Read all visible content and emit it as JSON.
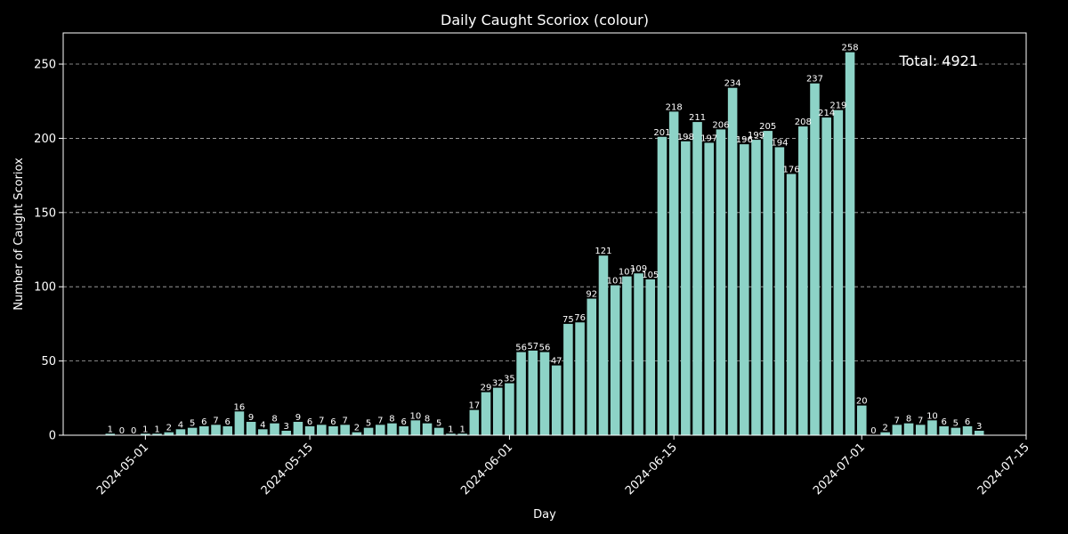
{
  "chart_data": {
    "type": "bar",
    "title": "Daily Caught Scoriox (colour)",
    "xlabel": "Day",
    "ylabel": "Number of Caught Scoriox",
    "annotation": "Total: 4921",
    "start_date": "2024-04-28",
    "dates": [
      "2024-04-28",
      "2024-04-29",
      "2024-04-30",
      "2024-05-01",
      "2024-05-02",
      "2024-05-03",
      "2024-05-04",
      "2024-05-05",
      "2024-05-06",
      "2024-05-07",
      "2024-05-08",
      "2024-05-09",
      "2024-05-10",
      "2024-05-11",
      "2024-05-12",
      "2024-05-13",
      "2024-05-14",
      "2024-05-15",
      "2024-05-16",
      "2024-05-17",
      "2024-05-18",
      "2024-05-19",
      "2024-05-20",
      "2024-05-21",
      "2024-05-22",
      "2024-05-23",
      "2024-05-24",
      "2024-05-25",
      "2024-05-26",
      "2024-05-27",
      "2024-05-28",
      "2024-05-29",
      "2024-05-30",
      "2024-05-31",
      "2024-06-01",
      "2024-06-02",
      "2024-06-03",
      "2024-06-04",
      "2024-06-05",
      "2024-06-06",
      "2024-06-07",
      "2024-06-08",
      "2024-06-09",
      "2024-06-10",
      "2024-06-11",
      "2024-06-12",
      "2024-06-13",
      "2024-06-14",
      "2024-06-15",
      "2024-06-16",
      "2024-06-17",
      "2024-06-18",
      "2024-06-19",
      "2024-06-20",
      "2024-06-21",
      "2024-06-22",
      "2024-06-23",
      "2024-06-24",
      "2024-06-25",
      "2024-06-26",
      "2024-06-27",
      "2024-06-28",
      "2024-06-29",
      "2024-06-30",
      "2024-07-01",
      "2024-07-02",
      "2024-07-03",
      "2024-07-04",
      "2024-07-05",
      "2024-07-06",
      "2024-07-07",
      "2024-07-08",
      "2024-07-09",
      "2024-07-10",
      "2024-07-11"
    ],
    "values": [
      1,
      0,
      0,
      1,
      1,
      2,
      4,
      5,
      6,
      7,
      6,
      16,
      9,
      4,
      8,
      3,
      9,
      6,
      7,
      6,
      7,
      2,
      5,
      7,
      8,
      6,
      10,
      8,
      5,
      1,
      1,
      17,
      29,
      32,
      35,
      56,
      57,
      56,
      47,
      75,
      76,
      92,
      121,
      101,
      107,
      109,
      105,
      201,
      218,
      198,
      211,
      197,
      206,
      234,
      196,
      199,
      205,
      194,
      176,
      208,
      237,
      214,
      219,
      258,
      20,
      0,
      2,
      7,
      8,
      7,
      10,
      6,
      5,
      6,
      3
    ],
    "x_ticks": [
      "2024-05-01",
      "2024-05-15",
      "2024-06-01",
      "2024-06-15",
      "2024-07-01",
      "2024-07-15"
    ],
    "y_ticks": [
      0,
      50,
      100,
      150,
      200,
      250
    ],
    "ylim": [
      0,
      271
    ],
    "xlim": [
      "2024-04-24",
      "2024-07-15"
    ],
    "grid": "y-dashed",
    "colors": {
      "background": "#000000",
      "bar": "#8dd3c7",
      "axis": "#ffffff",
      "grid": "#b0b0b0"
    }
  }
}
